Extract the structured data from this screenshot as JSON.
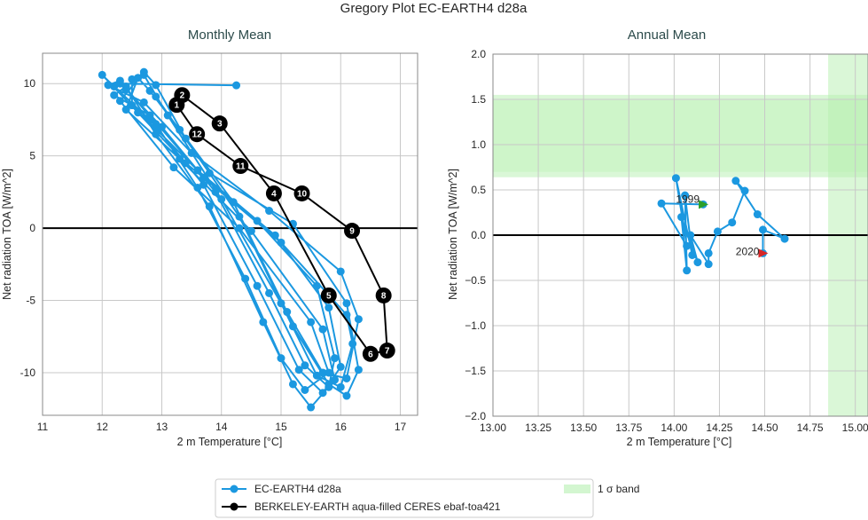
{
  "title": "Gregory Plot EC-EARTH4 d28a",
  "colors": {
    "model": "#1b98e0",
    "obs": "#000000",
    "band": "#b6f0b0",
    "start": "#2ca02c",
    "end": "#d62728"
  },
  "legend": {
    "placement": "bottom-center",
    "entries": [
      "EC-EARTH4 d28a",
      "BERKELEY-EARTH aqua-filled CERES ebaf-toa421",
      "1 σ band"
    ]
  },
  "chart_data": [
    {
      "type": "line",
      "title": "Monthly Mean",
      "xlabel": "2 m Temperature [°C]",
      "ylabel": "Net radiation TOA [W/m^2]",
      "xlim": [
        11.0,
        17.29
      ],
      "ylim": [
        -12.95,
        12.1
      ],
      "xticks": [
        11,
        12,
        13,
        14,
        15,
        16,
        17
      ],
      "yticks": [
        -10,
        -5,
        0,
        5,
        10
      ],
      "grid": true,
      "hline": 0,
      "series": [
        {
          "name": "EC-EARTH4 d28a",
          "start": [
            14.25,
            9.88
          ],
          "years": [
            [
              [
                12.3,
                10.0
              ],
              [
                12.4,
                9.6
              ],
              [
                13.0,
                7.0
              ],
              [
                13.9,
                2.5
              ],
              [
                14.8,
                -4.5
              ],
              [
                15.4,
                -9.5
              ],
              [
                15.8,
                -11.0
              ],
              [
                15.9,
                -9.0
              ],
              [
                15.6,
                -4.0
              ],
              [
                14.6,
                0.5
              ],
              [
                13.4,
                4.5
              ],
              [
                12.6,
                8.0
              ]
            ],
            [
              [
                12.0,
                10.6
              ],
              [
                12.2,
                9.8
              ],
              [
                12.8,
                7.5
              ],
              [
                13.7,
                3.0
              ],
              [
                14.6,
                -4.0
              ],
              [
                15.3,
                -9.8
              ],
              [
                15.7,
                -11.4
              ],
              [
                16.0,
                -9.6
              ],
              [
                15.8,
                -5.5
              ],
              [
                14.9,
                -0.5
              ],
              [
                13.6,
                4.0
              ],
              [
                12.5,
                8.5
              ]
            ],
            [
              [
                12.5,
                10.3
              ],
              [
                12.7,
                10.6
              ],
              [
                13.1,
                7.8
              ],
              [
                14.0,
                2.0
              ],
              [
                15.0,
                -5.2
              ],
              [
                15.6,
                -10.2
              ],
              [
                16.0,
                -11.0
              ],
              [
                16.2,
                -8.0
              ],
              [
                16.1,
                -6.0
              ],
              [
                15.0,
                -1.0
              ],
              [
                13.7,
                3.5
              ],
              [
                12.8,
                7.8
              ]
            ],
            [
              [
                12.2,
                9.2
              ],
              [
                12.4,
                9.8
              ],
              [
                12.9,
                6.5
              ],
              [
                13.8,
                1.5
              ],
              [
                14.7,
                -6.5
              ],
              [
                15.2,
                -10.8
              ],
              [
                15.5,
                -12.4
              ],
              [
                15.9,
                -10.5
              ],
              [
                15.7,
                -7.0
              ],
              [
                14.5,
                -0.2
              ],
              [
                13.3,
                4.8
              ],
              [
                12.4,
                8.2
              ]
            ],
            [
              [
                12.6,
                10.4
              ],
              [
                12.8,
                9.5
              ],
              [
                13.3,
                6.8
              ],
              [
                14.2,
                1.8
              ],
              [
                15.1,
                -5.8
              ],
              [
                15.7,
                -10.0
              ],
              [
                16.1,
                -10.4
              ],
              [
                16.3,
                -6.3
              ],
              [
                16.0,
                -3.0
              ],
              [
                14.8,
                1.2
              ],
              [
                13.5,
                5.2
              ],
              [
                12.7,
                8.7
              ]
            ],
            [
              [
                12.1,
                9.9
              ],
              [
                12.3,
                10.2
              ],
              [
                12.9,
                7.2
              ],
              [
                13.6,
                2.8
              ],
              [
                14.4,
                -3.5
              ],
              [
                15.0,
                -9.0
              ],
              [
                15.4,
                -11.2
              ],
              [
                15.8,
                -10.0
              ],
              [
                15.5,
                -6.5
              ],
              [
                14.3,
                0.0
              ],
              [
                13.2,
                4.2
              ],
              [
                12.3,
                8.8
              ]
            ],
            [
              [
                12.7,
                10.8
              ],
              [
                12.9,
                9.9
              ],
              [
                13.4,
                6.2
              ],
              [
                14.3,
                0.8
              ],
              [
                15.2,
                -6.8
              ],
              [
                15.8,
                -10.8
              ],
              [
                16.1,
                -11.6
              ],
              [
                16.3,
                -9.8
              ],
              [
                16.1,
                -5.2
              ],
              [
                15.2,
                0.3
              ],
              [
                13.8,
                3.8
              ],
              [
                12.9,
                9.1
              ]
            ]
          ]
        },
        {
          "name": "BERKELEY-EARTH aqua-filled CERES ebaf-toa421",
          "months": [
            "1",
            "2",
            "3",
            "4",
            "5",
            "6",
            "7",
            "8",
            "9",
            "10",
            "11",
            "12"
          ],
          "points": [
            [
              13.25,
              8.53
            ],
            [
              13.34,
              9.2
            ],
            [
              13.97,
              7.24
            ],
            [
              14.88,
              2.4
            ],
            [
              15.8,
              -4.66
            ],
            [
              16.5,
              -8.7
            ],
            [
              16.78,
              -8.47
            ],
            [
              16.72,
              -4.66
            ],
            [
              16.19,
              -0.18
            ],
            [
              15.35,
              2.4
            ],
            [
              14.32,
              4.3
            ],
            [
              13.59,
              6.5
            ]
          ]
        }
      ]
    },
    {
      "type": "line",
      "title": "Annual Mean",
      "xlabel": "2 m Temperature [°C]",
      "ylabel": "Net radiation TOA [W/m^2]",
      "xlim": [
        13.0,
        15.07
      ],
      "ylim": [
        -2.0,
        2.0
      ],
      "xticks": [
        "13.00",
        "13.25",
        "13.50",
        "13.75",
        "14.00",
        "14.25",
        "14.50",
        "14.75",
        "15.00"
      ],
      "yticks": [
        "−2.0",
        "−1.5",
        "−1.0",
        "−0.5",
        "0.0",
        "0.5",
        "1.0",
        "1.5",
        "2.0"
      ],
      "grid": true,
      "hline": 0,
      "band_y": [
        0.64,
        1.55
      ],
      "band_x": [
        14.85,
        15.2
      ],
      "start_label": "1999",
      "end_label": "2020",
      "series": [
        {
          "name": "EC-EARTH4 d28a",
          "points": [
            [
              14.16,
              0.34
            ],
            [
              13.93,
              0.35
            ],
            [
              14.07,
              -0.12
            ],
            [
              14.01,
              0.63
            ],
            [
              14.1,
              -0.22
            ],
            [
              14.06,
              0.44
            ],
            [
              14.07,
              -0.39
            ],
            [
              14.04,
              0.2
            ],
            [
              14.13,
              -0.3
            ],
            [
              14.09,
              0.0
            ],
            [
              14.19,
              -0.32
            ],
            [
              14.19,
              -0.2
            ],
            [
              14.24,
              0.04
            ],
            [
              14.32,
              0.14
            ],
            [
              14.39,
              0.49
            ],
            [
              14.34,
              0.6
            ],
            [
              14.46,
              0.23
            ],
            [
              14.61,
              -0.04
            ],
            [
              14.49,
              0.06
            ],
            [
              14.49,
              -0.2
            ]
          ]
        }
      ]
    }
  ]
}
